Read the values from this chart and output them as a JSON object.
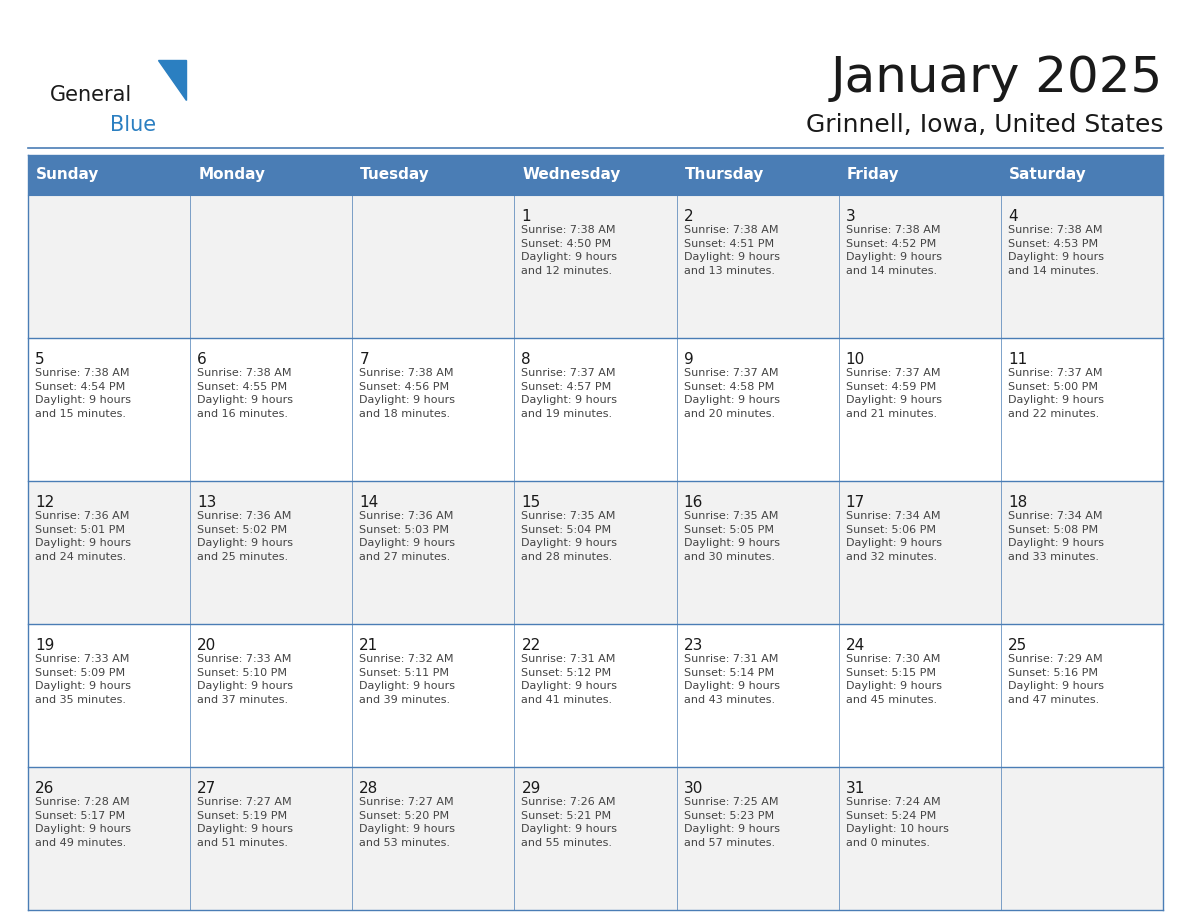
{
  "title": "January 2025",
  "subtitle": "Grinnell, Iowa, United States",
  "header_bg": "#4a7db5",
  "header_text": "#ffffff",
  "cell_bg_odd": "#f2f2f2",
  "cell_bg_even": "#ffffff",
  "border_color": "#4a7db5",
  "line_color": "#4a7db5",
  "day_headers": [
    "Sunday",
    "Monday",
    "Tuesday",
    "Wednesday",
    "Thursday",
    "Friday",
    "Saturday"
  ],
  "title_color": "#1a1a1a",
  "subtitle_color": "#1a1a1a",
  "day_num_color": "#1a1a1a",
  "cell_text_color": "#444444",
  "logo_general_color": "#1a1a1a",
  "logo_blue_color": "#2b7fc1",
  "fig_width": 11.88,
  "fig_height": 9.18,
  "dpi": 100,
  "weeks": [
    [
      {
        "day": "",
        "info": ""
      },
      {
        "day": "",
        "info": ""
      },
      {
        "day": "",
        "info": ""
      },
      {
        "day": "1",
        "info": "Sunrise: 7:38 AM\nSunset: 4:50 PM\nDaylight: 9 hours\nand 12 minutes."
      },
      {
        "day": "2",
        "info": "Sunrise: 7:38 AM\nSunset: 4:51 PM\nDaylight: 9 hours\nand 13 minutes."
      },
      {
        "day": "3",
        "info": "Sunrise: 7:38 AM\nSunset: 4:52 PM\nDaylight: 9 hours\nand 14 minutes."
      },
      {
        "day": "4",
        "info": "Sunrise: 7:38 AM\nSunset: 4:53 PM\nDaylight: 9 hours\nand 14 minutes."
      }
    ],
    [
      {
        "day": "5",
        "info": "Sunrise: 7:38 AM\nSunset: 4:54 PM\nDaylight: 9 hours\nand 15 minutes."
      },
      {
        "day": "6",
        "info": "Sunrise: 7:38 AM\nSunset: 4:55 PM\nDaylight: 9 hours\nand 16 minutes."
      },
      {
        "day": "7",
        "info": "Sunrise: 7:38 AM\nSunset: 4:56 PM\nDaylight: 9 hours\nand 18 minutes."
      },
      {
        "day": "8",
        "info": "Sunrise: 7:37 AM\nSunset: 4:57 PM\nDaylight: 9 hours\nand 19 minutes."
      },
      {
        "day": "9",
        "info": "Sunrise: 7:37 AM\nSunset: 4:58 PM\nDaylight: 9 hours\nand 20 minutes."
      },
      {
        "day": "10",
        "info": "Sunrise: 7:37 AM\nSunset: 4:59 PM\nDaylight: 9 hours\nand 21 minutes."
      },
      {
        "day": "11",
        "info": "Sunrise: 7:37 AM\nSunset: 5:00 PM\nDaylight: 9 hours\nand 22 minutes."
      }
    ],
    [
      {
        "day": "12",
        "info": "Sunrise: 7:36 AM\nSunset: 5:01 PM\nDaylight: 9 hours\nand 24 minutes."
      },
      {
        "day": "13",
        "info": "Sunrise: 7:36 AM\nSunset: 5:02 PM\nDaylight: 9 hours\nand 25 minutes."
      },
      {
        "day": "14",
        "info": "Sunrise: 7:36 AM\nSunset: 5:03 PM\nDaylight: 9 hours\nand 27 minutes."
      },
      {
        "day": "15",
        "info": "Sunrise: 7:35 AM\nSunset: 5:04 PM\nDaylight: 9 hours\nand 28 minutes."
      },
      {
        "day": "16",
        "info": "Sunrise: 7:35 AM\nSunset: 5:05 PM\nDaylight: 9 hours\nand 30 minutes."
      },
      {
        "day": "17",
        "info": "Sunrise: 7:34 AM\nSunset: 5:06 PM\nDaylight: 9 hours\nand 32 minutes."
      },
      {
        "day": "18",
        "info": "Sunrise: 7:34 AM\nSunset: 5:08 PM\nDaylight: 9 hours\nand 33 minutes."
      }
    ],
    [
      {
        "day": "19",
        "info": "Sunrise: 7:33 AM\nSunset: 5:09 PM\nDaylight: 9 hours\nand 35 minutes."
      },
      {
        "day": "20",
        "info": "Sunrise: 7:33 AM\nSunset: 5:10 PM\nDaylight: 9 hours\nand 37 minutes."
      },
      {
        "day": "21",
        "info": "Sunrise: 7:32 AM\nSunset: 5:11 PM\nDaylight: 9 hours\nand 39 minutes."
      },
      {
        "day": "22",
        "info": "Sunrise: 7:31 AM\nSunset: 5:12 PM\nDaylight: 9 hours\nand 41 minutes."
      },
      {
        "day": "23",
        "info": "Sunrise: 7:31 AM\nSunset: 5:14 PM\nDaylight: 9 hours\nand 43 minutes."
      },
      {
        "day": "24",
        "info": "Sunrise: 7:30 AM\nSunset: 5:15 PM\nDaylight: 9 hours\nand 45 minutes."
      },
      {
        "day": "25",
        "info": "Sunrise: 7:29 AM\nSunset: 5:16 PM\nDaylight: 9 hours\nand 47 minutes."
      }
    ],
    [
      {
        "day": "26",
        "info": "Sunrise: 7:28 AM\nSunset: 5:17 PM\nDaylight: 9 hours\nand 49 minutes."
      },
      {
        "day": "27",
        "info": "Sunrise: 7:27 AM\nSunset: 5:19 PM\nDaylight: 9 hours\nand 51 minutes."
      },
      {
        "day": "28",
        "info": "Sunrise: 7:27 AM\nSunset: 5:20 PM\nDaylight: 9 hours\nand 53 minutes."
      },
      {
        "day": "29",
        "info": "Sunrise: 7:26 AM\nSunset: 5:21 PM\nDaylight: 9 hours\nand 55 minutes."
      },
      {
        "day": "30",
        "info": "Sunrise: 7:25 AM\nSunset: 5:23 PM\nDaylight: 9 hours\nand 57 minutes."
      },
      {
        "day": "31",
        "info": "Sunrise: 7:24 AM\nSunset: 5:24 PM\nDaylight: 10 hours\nand 0 minutes."
      },
      {
        "day": "",
        "info": ""
      }
    ]
  ]
}
